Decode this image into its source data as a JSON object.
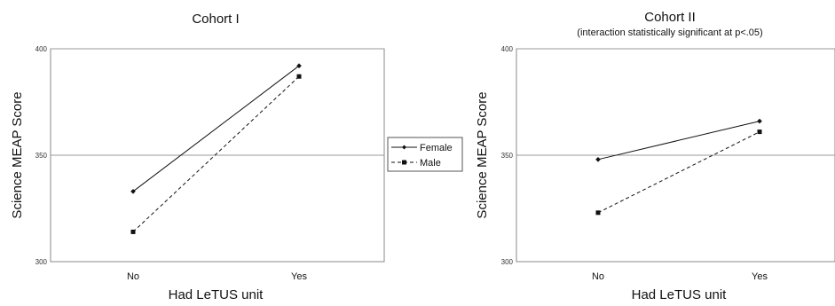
{
  "chart_data": [
    {
      "type": "line",
      "title": "Cohort I",
      "subtitle": "",
      "xlabel": "Had LeTUS unit",
      "ylabel": "Science MEAP Score",
      "categories": [
        "No",
        "Yes"
      ],
      "ylim": [
        300,
        400
      ],
      "yticks": [
        300,
        350,
        400
      ],
      "grid": "major y at 350",
      "series": [
        {
          "name": "Female",
          "values": [
            333,
            392
          ],
          "style": "solid",
          "marker": "diamond"
        },
        {
          "name": "Male",
          "values": [
            314,
            387
          ],
          "style": "dashed",
          "marker": "square"
        }
      ]
    },
    {
      "type": "line",
      "title": "Cohort II",
      "subtitle": "(interaction statistically significant at p<.05)",
      "xlabel": "Had LeTUS unit",
      "ylabel": "Science MEAP Score",
      "categories": [
        "No",
        "Yes"
      ],
      "ylim": [
        300,
        400
      ],
      "yticks": [
        300,
        350,
        400
      ],
      "grid": "major y at 350 and 400",
      "series": [
        {
          "name": "Female",
          "values": [
            348,
            366
          ],
          "style": "solid",
          "marker": "diamond"
        },
        {
          "name": "Male",
          "values": [
            323,
            361
          ],
          "style": "dashed",
          "marker": "square"
        }
      ]
    }
  ],
  "legend": {
    "placement": "between-charts",
    "entries": [
      "Female",
      "Male"
    ]
  },
  "colors": {
    "line": "#111111",
    "grid": "#999999",
    "frame": "#888888"
  }
}
